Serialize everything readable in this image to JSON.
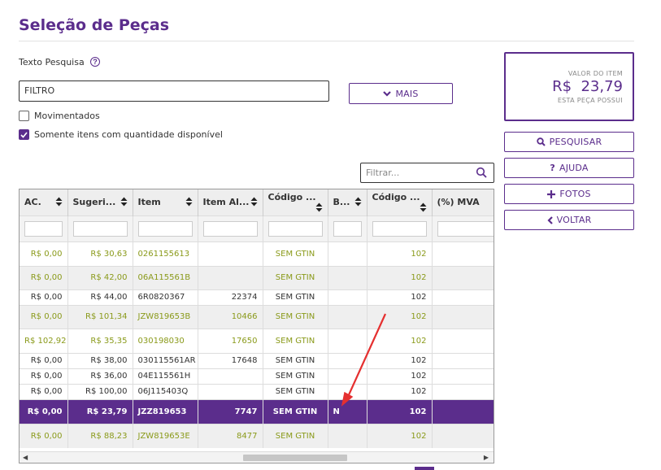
{
  "page": {
    "title": "Seleção de Peças"
  },
  "search": {
    "label": "Texto Pesquisa",
    "help_glyph": "?",
    "value": "FILTRO",
    "more_label": "MAIS"
  },
  "options": {
    "moved_label": "Movimentados",
    "moved_checked": false,
    "available_label": "Somente itens com quantidade disponível",
    "available_checked": true
  },
  "item_value": {
    "label": "VALOR DO ITEM",
    "amount": "R$  23,79",
    "note": "ESTA PEÇA POSSUI"
  },
  "actions": {
    "search": "PESQUISAR",
    "help": "AJUDA",
    "photos": "FOTOS",
    "back": "VOLTAR"
  },
  "grid": {
    "filter_placeholder": "Filtrar...",
    "columns": [
      "AC.",
      "Sugeri...",
      "Item",
      "Item Al...",
      "Código ...",
      "B...",
      "Código ...",
      "(%) MVA"
    ],
    "rows": [
      [
        "R$ 0,00",
        "R$ 30,63",
        "0261155613",
        "",
        "SEM GTIN",
        "",
        "102",
        ""
      ],
      [
        "R$ 0,00",
        "R$ 42,00",
        "06A115561B",
        "",
        "SEM GTIN",
        "",
        "102",
        ""
      ],
      [
        "R$ 0,00",
        "R$ 44,00",
        "6R0820367",
        "22374",
        "SEM GTIN",
        "",
        "102",
        ""
      ],
      [
        "R$ 0,00",
        "R$ 101,34",
        "JZW819653B",
        "10466",
        "SEM GTIN",
        "",
        "102",
        ""
      ],
      [
        "R$ 102,92",
        "R$ 35,35",
        "030198030",
        "17650",
        "SEM GTIN",
        "",
        "102",
        ""
      ],
      [
        "R$ 0,00",
        "R$ 38,00",
        "030115561AR",
        "17648",
        "SEM GTIN",
        "",
        "102",
        ""
      ],
      [
        "R$ 0,00",
        "R$ 36,00",
        "04E115561H",
        "",
        "SEM GTIN",
        "",
        "102",
        ""
      ],
      [
        "R$ 0,00",
        "R$ 100,00",
        "06J115403Q",
        "",
        "SEM GTIN",
        "",
        "102",
        ""
      ],
      [
        "R$ 0,00",
        "R$ 23,79",
        "JZZ819653",
        "7747",
        "SEM GTIN",
        "N",
        "102",
        ""
      ],
      [
        "R$ 0,00",
        "R$ 88,23",
        "JZW819653E",
        "8477",
        "SEM GTIN",
        "",
        "102",
        ""
      ]
    ]
  },
  "colors": {
    "accent": "#5b2d8c",
    "highlight_text": "#8a9a1a",
    "annotation_arrow": "#e53030"
  },
  "icons": {
    "search": "search-icon",
    "help": "question-icon",
    "add": "plus-icon",
    "back": "chevron-left-icon",
    "more": "chevron-down-icon"
  }
}
